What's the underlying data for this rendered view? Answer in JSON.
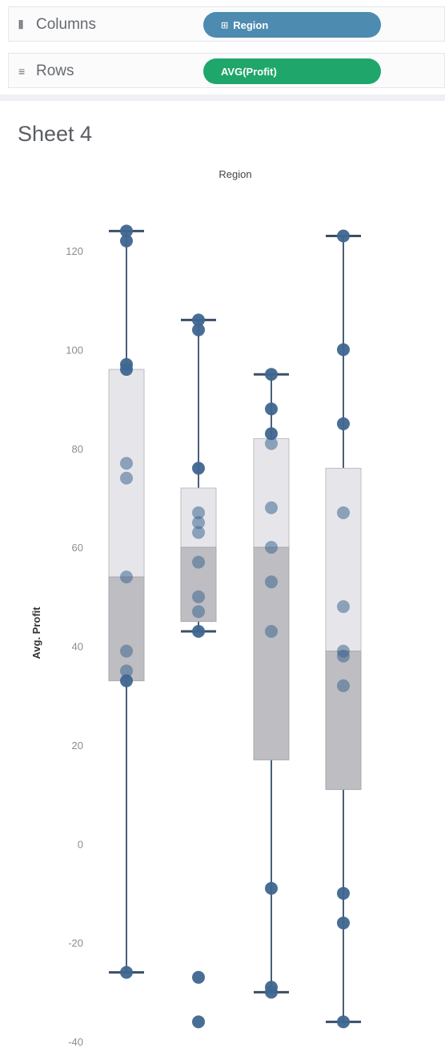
{
  "shelves": {
    "columns": {
      "label": "Columns",
      "icon": "columns-icon",
      "pill": "Region",
      "pill_color": "#4e8bb0"
    },
    "rows": {
      "label": "Rows",
      "icon": "rows-icon",
      "pill": "AVG(Profit)",
      "pill_color": "#1fa66a"
    }
  },
  "sheet_title": "Sheet 4",
  "chart_data": {
    "type": "box",
    "title": "Region",
    "ylabel": "Avg. Profit",
    "ylim": [
      -40,
      125
    ],
    "yticks": [
      120,
      100,
      80,
      60,
      40,
      20,
      0,
      -20,
      -40
    ],
    "grid": false,
    "point_color": "#3f6690",
    "box_upper_color": "#e6e6ea",
    "box_lower_color": "#bdbdc2",
    "boxes": [
      {
        "whisker_high": 124,
        "q3": 96,
        "median": 54,
        "q1": 33,
        "whisker_low": -26,
        "points": [
          124,
          122,
          97,
          96,
          77,
          74,
          54,
          39,
          35,
          33,
          -26
        ]
      },
      {
        "whisker_high": 106,
        "q3": 72,
        "median": 60,
        "q1": 45,
        "whisker_low": 43,
        "points": [
          106,
          104,
          76,
          67,
          65,
          63,
          57,
          50,
          47,
          43,
          -27,
          -36
        ]
      },
      {
        "whisker_high": 95,
        "q3": 82,
        "median": 60,
        "q1": 17,
        "whisker_low": -30,
        "points": [
          95,
          88,
          83,
          81,
          68,
          60,
          53,
          43,
          -9,
          -29,
          -30
        ]
      },
      {
        "whisker_high": 123,
        "q3": 76,
        "median": 39,
        "q1": 11,
        "whisker_low": -36,
        "points": [
          123,
          100,
          85,
          67,
          48,
          39,
          38,
          32,
          -10,
          -16,
          -36
        ]
      }
    ]
  }
}
